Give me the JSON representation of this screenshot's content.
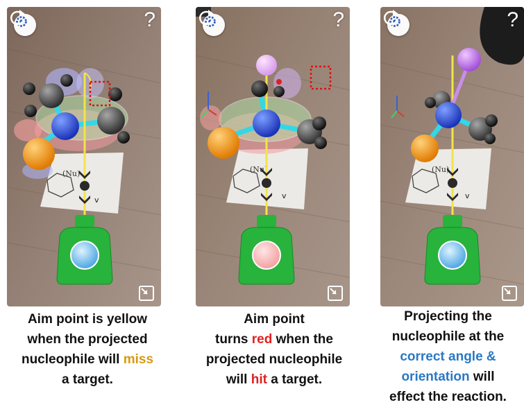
{
  "screens": [
    {
      "help_label": "?",
      "caption": {
        "line1": "Aim point is yellow",
        "line2": "when the projected",
        "line3_pre": "nucleophile will ",
        "line3_em": "miss",
        "line4": "a target."
      },
      "aim_point_color": "#f3e34a",
      "launcher_core_color": "#3f9fe0"
    },
    {
      "help_label": "?",
      "caption": {
        "line1": "Aim point",
        "line2_pre": "turns ",
        "line2_em": "red",
        "line2_post": " when the",
        "line3": "projected nucleophile",
        "line4_pre": "will ",
        "line4_em": "hit",
        "line4_post": " a target."
      },
      "aim_point_color": "#e02020",
      "launcher_core_color": "#f19a9a"
    },
    {
      "help_label": "?",
      "caption": {
        "line1": "Projecting the",
        "line2": "nucleophile at the",
        "line3": "correct angle &",
        "line4_em": "orientation",
        "line4_post": " will",
        "line5": "effect the reaction."
      },
      "aim_point_color": "#f3e34a",
      "launcher_core_color": "#3f9fe0"
    }
  ],
  "card_label": "(Nu)",
  "card_sub": "v",
  "colors": {
    "miss": "#d79a12",
    "hit": "#e02020",
    "emphasis": "#2a78c4",
    "launcher_green": "#27b33c",
    "nucleophile_orange": "#f29a1a",
    "central_blue": "#1f45d8"
  }
}
